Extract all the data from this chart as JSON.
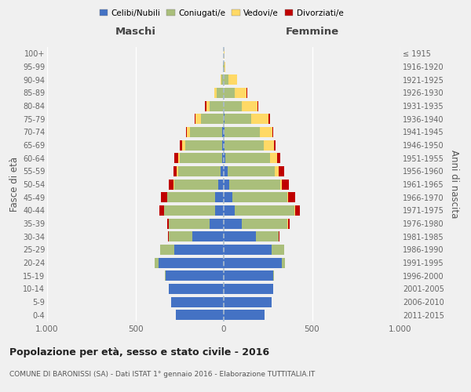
{
  "age_groups": [
    "0-4",
    "5-9",
    "10-14",
    "15-19",
    "20-24",
    "25-29",
    "30-34",
    "35-39",
    "40-44",
    "45-49",
    "50-54",
    "55-59",
    "60-64",
    "65-69",
    "70-74",
    "75-79",
    "80-84",
    "85-89",
    "90-94",
    "95-99",
    "100+"
  ],
  "birth_years": [
    "2011-2015",
    "2006-2010",
    "2001-2005",
    "1996-2000",
    "1991-1995",
    "1986-1990",
    "1981-1985",
    "1976-1980",
    "1971-1975",
    "1966-1970",
    "1961-1965",
    "1956-1960",
    "1951-1955",
    "1946-1950",
    "1941-1945",
    "1936-1940",
    "1931-1935",
    "1926-1930",
    "1921-1925",
    "1916-1920",
    "≤ 1915"
  ],
  "male": {
    "celibi": [
      270,
      300,
      310,
      330,
      370,
      280,
      180,
      80,
      50,
      50,
      30,
      20,
      10,
      10,
      10,
      0,
      0,
      0,
      0,
      0,
      0
    ],
    "coniugati": [
      0,
      0,
      0,
      5,
      20,
      80,
      130,
      230,
      290,
      270,
      250,
      240,
      240,
      210,
      180,
      130,
      80,
      40,
      15,
      4,
      2
    ],
    "vedovi": [
      0,
      0,
      0,
      0,
      0,
      0,
      0,
      0,
      0,
      0,
      5,
      5,
      10,
      15,
      20,
      30,
      20,
      15,
      5,
      0,
      0
    ],
    "divorziati": [
      0,
      0,
      0,
      0,
      0,
      0,
      5,
      10,
      25,
      35,
      25,
      20,
      20,
      15,
      5,
      5,
      5,
      0,
      0,
      0,
      0
    ]
  },
  "female": {
    "nubili": [
      230,
      270,
      280,
      280,
      330,
      270,
      180,
      100,
      60,
      50,
      30,
      20,
      10,
      5,
      5,
      5,
      0,
      0,
      0,
      0,
      0
    ],
    "coniugate": [
      0,
      0,
      0,
      5,
      15,
      70,
      130,
      260,
      340,
      310,
      290,
      270,
      250,
      220,
      200,
      150,
      100,
      60,
      25,
      5,
      2
    ],
    "vedove": [
      0,
      0,
      0,
      0,
      0,
      0,
      0,
      5,
      5,
      5,
      10,
      20,
      40,
      60,
      70,
      100,
      90,
      70,
      50,
      5,
      2
    ],
    "divorziate": [
      0,
      0,
      0,
      0,
      0,
      0,
      5,
      10,
      25,
      40,
      40,
      30,
      20,
      10,
      5,
      5,
      5,
      5,
      0,
      0,
      0
    ]
  },
  "colors": {
    "celibi": "#4472C4",
    "coniugati": "#AABF7B",
    "vedovi": "#FFD966",
    "divorziati": "#C00000"
  },
  "title": "Popolazione per età, sesso e stato civile - 2016",
  "subtitle": "COMUNE DI BARONISSI (SA) - Dati ISTAT 1° gennaio 2016 - Elaborazione TUTTITALIA.IT",
  "ylabel_left": "Fasce di età",
  "ylabel_right": "Anni di nascita",
  "xlabel_left": "Maschi",
  "xlabel_right": "Femmine",
  "xlim": 1000,
  "legend_labels": [
    "Celibi/Nubili",
    "Coniugati/e",
    "Vedovi/e",
    "Divorziati/e"
  ],
  "bg_color": "#f0f0f0",
  "plot_bg_color": "#f0f0f0"
}
